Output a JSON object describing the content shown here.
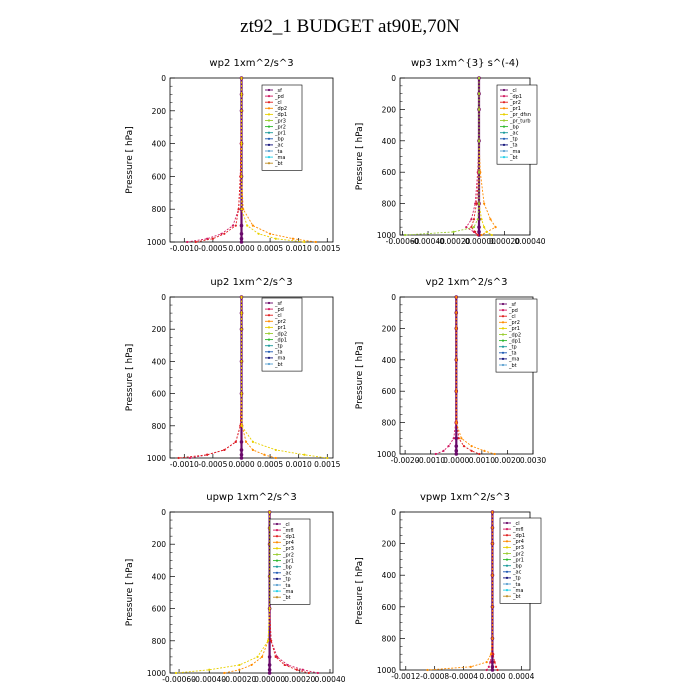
{
  "title": "zt92_1  BUDGET at90E,70N",
  "colors": [
    "#6a0a6a",
    "#d11a60",
    "#e02020",
    "#ff8c00",
    "#e8d000",
    "#9acd32",
    "#2db82d",
    "#1a9a9a",
    "#1e5ab4",
    "#11117a",
    "#5aa0d0",
    "#22cfe8",
    "#c0902a",
    "#ff5090"
  ],
  "chart_data": [
    {
      "type": "line",
      "title": "wp2   1xm^2/s^3",
      "ylabel": "Pressure  [ hPa]",
      "xticks": [
        "-0.0010",
        "-0.0005",
        "0.0000",
        "0.0005",
        "0.0010",
        "0.0015"
      ],
      "xvals": [
        -0.001,
        -0.0005,
        0,
        0.0005,
        0.001,
        0.0015
      ],
      "xlim": [
        -0.00125,
        0.0016
      ],
      "yticks": [
        "0",
        "200",
        "400",
        "600",
        "800",
        "1000"
      ],
      "ylim": [
        0,
        1000
      ],
      "legend": [
        "_sf",
        "_pd",
        "_cl",
        "_dp2",
        "_dp1",
        "_pr3",
        "_pr2",
        "_pr1",
        "_bp",
        "_ac",
        "_ta",
        "_ma",
        "_bt"
      ],
      "series": [
        {
          "x": [
            0,
            0,
            0,
            0,
            0,
            0,
            0,
            0,
            0,
            0
          ],
          "y": [
            0,
            100,
            200,
            400,
            600,
            800,
            900,
            950,
            980,
            1000
          ]
        },
        {
          "x": [
            0,
            0,
            0,
            -1e-05,
            -2e-05,
            -5e-05,
            -0.00015,
            -0.00035,
            -0.0006,
            -0.00095
          ],
          "y": [
            0,
            100,
            200,
            400,
            600,
            800,
            900,
            950,
            980,
            1000
          ]
        },
        {
          "x": [
            0,
            0,
            0,
            -1e-05,
            -2e-05,
            -5e-05,
            -0.0001,
            -0.0003,
            -0.0005,
            -0.0008
          ],
          "y": [
            0,
            100,
            200,
            400,
            600,
            800,
            900,
            950,
            980,
            1000
          ]
        },
        {
          "x": [
            0,
            0,
            0,
            0,
            0,
            3e-05,
            0.0002,
            0.0005,
            0.0009,
            0.0013
          ],
          "y": [
            0,
            100,
            200,
            400,
            600,
            800,
            900,
            950,
            980,
            1000
          ]
        },
        {
          "x": [
            0,
            0,
            0,
            0,
            0,
            0,
            0.0001,
            0.0003,
            0.0006,
            0.0011
          ],
          "y": [
            0,
            100,
            200,
            400,
            600,
            800,
            900,
            950,
            980,
            1000
          ]
        }
      ]
    },
    {
      "type": "line",
      "title": "wp3   1xm^{3} s^(-4)",
      "ylabel": "Pressure  [ hPa]",
      "xticks": [
        "-0.00060",
        "-0.00040",
        "-0.00020",
        "-0.00000",
        "0.00020",
        "0.00040"
      ],
      "xvals": [
        -0.0006,
        -0.0004,
        -0.0002,
        0,
        0.0002,
        0.0004
      ],
      "xlim": [
        -0.00062,
        0.0004
      ],
      "yticks": [
        "0",
        "200",
        "400",
        "600",
        "800",
        "1000"
      ],
      "ylim": [
        0,
        1000
      ],
      "legend": [
        "_cl",
        "_dp1",
        "_pr2",
        "_pr1",
        "_pr_dfsn",
        "_pr_turb",
        "_bp",
        "_ac",
        "_tp",
        "_ta",
        "_ma",
        "_bt"
      ],
      "series": [
        {
          "x": [
            0,
            0,
            0,
            0,
            0,
            0,
            0,
            0,
            0,
            0
          ],
          "y": [
            0,
            100,
            200,
            400,
            600,
            800,
            900,
            950,
            980,
            1000
          ]
        },
        {
          "x": [
            0,
            0,
            0,
            0,
            -1e-05,
            -3e-05,
            -6e-05,
            -0.0001,
            -4e-05,
            -1e-05
          ],
          "y": [
            0,
            100,
            200,
            400,
            600,
            800,
            900,
            950,
            980,
            1000
          ]
        },
        {
          "x": [
            0,
            0,
            0,
            0,
            0,
            -2e-05,
            -4e-05,
            -6e-05,
            -3e-05,
            -1e-05
          ],
          "y": [
            0,
            100,
            200,
            400,
            600,
            800,
            900,
            950,
            980,
            1000
          ]
        },
        {
          "x": [
            0,
            0,
            0,
            0,
            1e-05,
            4e-05,
            9e-05,
            0.00013,
            6e-05,
            2e-05
          ],
          "y": [
            0,
            100,
            200,
            400,
            600,
            800,
            900,
            950,
            980,
            1000
          ]
        },
        {
          "x": [
            0,
            0,
            0,
            0,
            0,
            0,
            2e-05,
            4e-05,
            6e-05,
            0.0001
          ],
          "y": [
            0,
            100,
            200,
            400,
            600,
            800,
            900,
            950,
            980,
            1000
          ]
        },
        {
          "x": [
            0,
            0,
            0,
            0,
            0,
            0,
            -1e-05,
            -4e-05,
            -0.0002,
            -0.00058
          ],
          "y": [
            0,
            100,
            200,
            400,
            600,
            800,
            900,
            950,
            980,
            1000
          ]
        }
      ]
    },
    {
      "type": "line",
      "title": "up2   1xm^2/s^3",
      "ylabel": "Pressure  [ hPa]",
      "xticks": [
        "-0.0010",
        "-0.0005",
        "0.0000",
        "0.0005",
        "0.0010",
        "0.0015"
      ],
      "xvals": [
        -0.001,
        -0.0005,
        0,
        0.0005,
        0.001,
        0.0015
      ],
      "xlim": [
        -0.00125,
        0.0016
      ],
      "yticks": [
        "0",
        "200",
        "400",
        "600",
        "800",
        "1000"
      ],
      "ylim": [
        0,
        1000
      ],
      "legend": [
        "_sf",
        "_pd",
        "_cl",
        "_pr2",
        "_pr1",
        "_dp2",
        "_dp1",
        "_tp",
        "_ta",
        "_ma",
        "_bt"
      ],
      "series": [
        {
          "x": [
            0,
            0,
            0,
            0,
            0,
            0,
            0,
            0,
            0,
            0
          ],
          "y": [
            0,
            100,
            200,
            400,
            600,
            800,
            900,
            950,
            980,
            1000
          ]
        },
        {
          "x": [
            0,
            0,
            0,
            0,
            0,
            -2e-05,
            -0.0001,
            -0.0003,
            -0.0006,
            -0.0009
          ],
          "y": [
            0,
            100,
            200,
            400,
            600,
            800,
            900,
            950,
            980,
            1000
          ]
        },
        {
          "x": [
            0,
            0,
            0,
            0,
            0,
            -2e-05,
            -0.0001,
            -0.0003,
            -0.0006,
            -0.0011
          ],
          "y": [
            0,
            100,
            200,
            400,
            600,
            800,
            900,
            950,
            980,
            1000
          ]
        },
        {
          "x": [
            0,
            0,
            0,
            0,
            0,
            1e-05,
            8e-05,
            0.0002,
            0.0004,
            0.0006
          ],
          "y": [
            0,
            100,
            200,
            400,
            600,
            800,
            900,
            950,
            980,
            1000
          ]
        },
        {
          "x": [
            0,
            0,
            0,
            0,
            0,
            0,
            0.0002,
            0.0006,
            0.0011,
            0.0015
          ],
          "y": [
            0,
            100,
            200,
            400,
            600,
            800,
            900,
            950,
            980,
            1000
          ]
        }
      ]
    },
    {
      "type": "line",
      "title": "vp2   1xm^2/s^3",
      "ylabel": "Pressure  [ hPa]",
      "xticks": [
        "-0.0020",
        "-0.0010",
        "0.0000",
        "0.0010",
        "0.0020",
        "0.0030"
      ],
      "xvals": [
        -0.002,
        -0.001,
        0,
        0.001,
        0.002,
        0.003
      ],
      "xlim": [
        -0.0022,
        0.003
      ],
      "yticks": [
        "0",
        "200",
        "400",
        "600",
        "800",
        "1000"
      ],
      "ylim": [
        0,
        1000
      ],
      "legend": [
        "_sf",
        "_pd",
        "_cl",
        "_pr2",
        "_pr1",
        "_dp2",
        "_dp1",
        "_tp",
        "_ta",
        "_ma",
        "_bt"
      ],
      "series": [
        {
          "x": [
            0,
            0,
            0,
            0,
            0,
            0,
            0,
            0,
            0,
            0
          ],
          "y": [
            0,
            100,
            200,
            400,
            600,
            800,
            900,
            950,
            980,
            1000
          ]
        },
        {
          "x": [
            0,
            0,
            0,
            0,
            0,
            -2e-05,
            -0.0001,
            -0.0003,
            -0.0005,
            -0.0008
          ],
          "y": [
            0,
            100,
            200,
            400,
            600,
            800,
            900,
            950,
            980,
            1000
          ]
        },
        {
          "x": [
            0,
            0,
            0,
            0,
            0,
            2e-05,
            0.0001,
            0.0003,
            0.0006,
            0.0009
          ],
          "y": [
            0,
            100,
            200,
            400,
            600,
            800,
            900,
            950,
            980,
            1000
          ]
        },
        {
          "x": [
            0,
            0,
            0,
            0,
            0,
            0,
            0.0002,
            0.0006,
            0.0011,
            0.0015
          ],
          "y": [
            0,
            100,
            200,
            400,
            600,
            800,
            900,
            950,
            980,
            1000
          ]
        }
      ]
    },
    {
      "type": "line",
      "title": "upwp   1xm^2/s^3",
      "ylabel": "Pressure  [ hPa]",
      "xticks": [
        "-0.00060",
        "-0.00040",
        "-0.00020",
        "0.00000",
        "0.00020",
        "0.00040"
      ],
      "xvals": [
        -0.0006,
        -0.0004,
        -0.0002,
        0,
        0.0002,
        0.0004
      ],
      "xlim": [
        -0.00066,
        0.00042
      ],
      "yticks": [
        "0",
        "200",
        "400",
        "600",
        "800",
        "1000"
      ],
      "ylim": [
        0,
        1000
      ],
      "legend": [
        "_cl",
        "_mfl",
        "_dp1",
        "_pr4",
        "_pr3",
        "_pr2",
        "_pr1",
        "_bp",
        "_ac",
        "_tp",
        "_ta",
        "_ma",
        "_bt"
      ],
      "series": [
        {
          "x": [
            0,
            0,
            0,
            0,
            0,
            0,
            0,
            0,
            0,
            0
          ],
          "y": [
            0,
            100,
            200,
            400,
            600,
            800,
            900,
            950,
            980,
            1000
          ]
        },
        {
          "x": [
            0,
            0,
            0,
            0,
            0,
            1e-05,
            5e-05,
            0.00012,
            0.00022,
            0.00032
          ],
          "y": [
            0,
            100,
            200,
            400,
            600,
            800,
            900,
            950,
            980,
            1000
          ]
        },
        {
          "x": [
            0,
            0,
            0,
            0,
            0,
            1e-05,
            4e-05,
            0.0001,
            0.00018,
            0.00026
          ],
          "y": [
            0,
            100,
            200,
            400,
            600,
            800,
            900,
            950,
            980,
            1000
          ]
        },
        {
          "x": [
            0,
            0,
            0,
            0,
            0,
            -1e-05,
            -5e-05,
            -0.00012,
            -0.0002,
            -0.0003
          ],
          "y": [
            0,
            100,
            200,
            400,
            600,
            800,
            900,
            950,
            980,
            1000
          ]
        },
        {
          "x": [
            0,
            0,
            0,
            0,
            0,
            -1e-05,
            -8e-05,
            -0.0002,
            -0.0004,
            -0.00062
          ],
          "y": [
            0,
            100,
            200,
            400,
            600,
            800,
            900,
            950,
            980,
            1000
          ]
        }
      ]
    },
    {
      "type": "line",
      "title": "vpwp   1xm^2/s^3",
      "ylabel": "Pressure  [ hPa]",
      "xticks": [
        "-0.0012",
        "-0.0008",
        "-0.0004",
        "0.0000",
        "0.0004"
      ],
      "xvals": [
        -0.0012,
        -0.0008,
        -0.0004,
        0,
        0.0004
      ],
      "xlim": [
        -0.00128,
        0.00052
      ],
      "yticks": [
        "0",
        "200",
        "400",
        "600",
        "800",
        "1000"
      ],
      "ylim": [
        0,
        1000
      ],
      "legend": [
        "_cl",
        "_mfl",
        "_dp1",
        "_pr4",
        "_pr3",
        "_pr2",
        "_pr1",
        "_bp",
        "_ac",
        "_tp",
        "_ta",
        "_ma",
        "_bt"
      ],
      "series": [
        {
          "x": [
            0,
            0,
            0,
            0,
            0,
            0,
            0,
            0,
            0,
            0
          ],
          "y": [
            0,
            100,
            200,
            400,
            600,
            800,
            900,
            950,
            980,
            1000
          ]
        },
        {
          "x": [
            0,
            0,
            0,
            0,
            0,
            0,
            -1e-05,
            -3e-05,
            -5e-05,
            -8e-05
          ],
          "y": [
            0,
            100,
            200,
            400,
            600,
            800,
            900,
            950,
            980,
            1000
          ]
        },
        {
          "x": [
            0,
            0,
            0,
            0,
            0,
            0,
            1e-05,
            3e-05,
            5e-05,
            7e-05
          ],
          "y": [
            0,
            100,
            200,
            400,
            600,
            800,
            900,
            950,
            980,
            1000
          ]
        },
        {
          "x": [
            0,
            0,
            0,
            0,
            0,
            0,
            -2e-05,
            -8e-05,
            -0.0003,
            -0.0009
          ],
          "y": [
            0,
            100,
            200,
            400,
            600,
            800,
            900,
            950,
            980,
            1000
          ]
        }
      ]
    }
  ]
}
